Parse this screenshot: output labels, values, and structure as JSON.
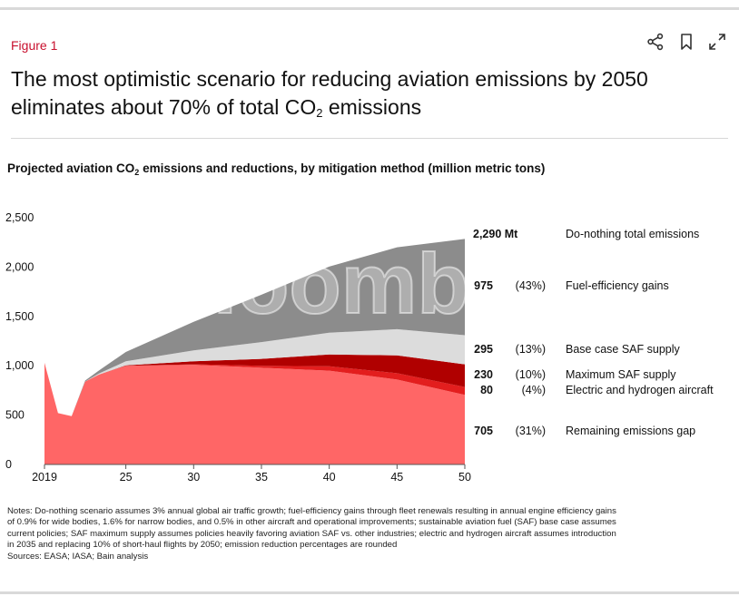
{
  "figure_label": "Figure 1",
  "headline": {
    "part1": "The most optimistic scenario for reducing aviation emissions by 2050 eliminates about 70% of total CO",
    "sub": "2",
    "part2": " emissions"
  },
  "icons": {
    "share": "share-icon",
    "bookmark": "bookmark-icon",
    "expand": "expand-icon"
  },
  "chart_title": {
    "part1": "Projected aviation CO",
    "sub": "2",
    "part2": " emissions and reductions, by mitigation method (million metric tons)"
  },
  "watermark": "Bloomberg",
  "colors": {
    "do_nothing": "#8c8c8c",
    "fuel_eff_light": "#bfbfbf",
    "base_saf": "#dcdcdc",
    "max_saf": "#b00000",
    "electric": "#e31e1e",
    "remaining": "#ff6666",
    "axis": "#555555"
  },
  "chart_data": {
    "type": "area",
    "stacked": true,
    "x": [
      2019,
      2020,
      2021,
      2022,
      2023,
      2025,
      2030,
      2035,
      2040,
      2045,
      2050
    ],
    "xticks": [
      2019,
      2025,
      2030,
      2035,
      2040,
      2045,
      2050
    ],
    "xtick_labels": [
      "2019",
      "25",
      "30",
      "35",
      "40",
      "45",
      "50"
    ],
    "yticks": [
      0,
      500,
      1000,
      1500,
      2000,
      2500
    ],
    "ytick_labels": [
      "0",
      "500",
      "1,000",
      "1,500",
      "2,000",
      "2,500"
    ],
    "ylim": [
      0,
      2500
    ],
    "series": [
      {
        "name": "Remaining emissions gap",
        "values": [
          1030,
          520,
          490,
          840,
          910,
          1000,
          1010,
          980,
          950,
          860,
          705
        ]
      },
      {
        "name": "Electric and hydrogen aircraft",
        "values": [
          0,
          0,
          0,
          0,
          0,
          0,
          5,
          20,
          45,
          65,
          80
        ]
      },
      {
        "name": "Maximum SAF supply",
        "values": [
          0,
          0,
          0,
          0,
          0,
          5,
          30,
          70,
          120,
          180,
          230
        ]
      },
      {
        "name": "Base case SAF supply",
        "values": [
          0,
          0,
          0,
          0,
          10,
          40,
          110,
          170,
          220,
          265,
          295
        ]
      },
      {
        "name": "Fuel-efficiency gains",
        "values": [
          0,
          0,
          0,
          10,
          30,
          95,
          290,
          480,
          670,
          830,
          975
        ]
      }
    ],
    "legend": [
      {
        "value": "2,290 Mt",
        "pct": "",
        "label": "Do-nothing total emissions"
      },
      {
        "value": "975",
        "pct": "(43%)",
        "label": "Fuel-efficiency gains"
      },
      {
        "value": "295",
        "pct": "(13%)",
        "label": "Base case SAF supply"
      },
      {
        "value": "230",
        "pct": "(10%)",
        "label": "Maximum SAF supply"
      },
      {
        "value": "80",
        "pct": "(4%)",
        "label": "Electric and hydrogen aircraft"
      },
      {
        "value": "705",
        "pct": "(31%)",
        "label": "Remaining emissions gap"
      }
    ]
  },
  "notes": [
    "Notes: Do-nothing scenario assumes 3% annual global air traffic growth; fuel-efficiency gains through fleet renewals resulting in annual engine efficiency gains",
    "of 0.9% for wide bodies, 1.6% for narrow bodies, and 0.5% in other aircraft and operational improvements; sustainable aviation fuel (SAF) base case assumes",
    "current policies; SAF maximum supply assumes policies heavily favoring aviation SAF vs. other industries; electric and hydrogen aircraft assumes introduction",
    "in 2035 and replacing 10% of short-haul flights by 2050; emission reduction percentages are rounded",
    "Sources: EASA; IASA; Bain analysis"
  ]
}
